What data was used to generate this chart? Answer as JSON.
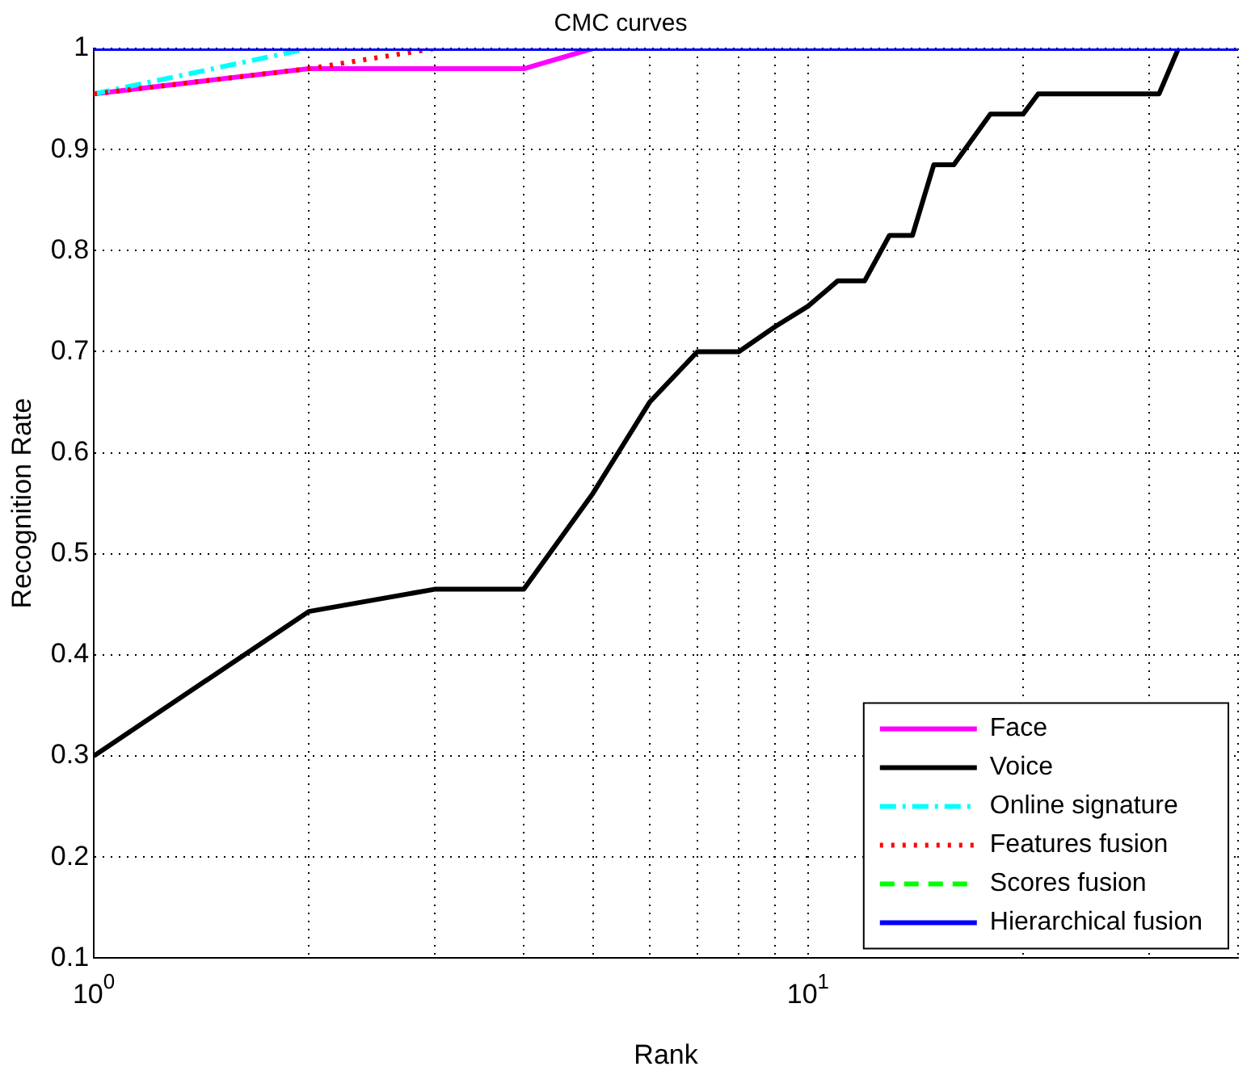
{
  "chart_data": {
    "type": "line",
    "title": "CMC curves",
    "xlabel": "Rank",
    "ylabel": "Recognition Rate",
    "log": "x",
    "xlim": [
      1,
      40
    ],
    "xticks": [
      {
        "value": 1,
        "label": "10$^{0}$"
      },
      {
        "value": 2,
        "label": null
      },
      {
        "value": 3,
        "label": null
      },
      {
        "value": 4,
        "label": null
      },
      {
        "value": 5,
        "label": null
      },
      {
        "value": 6,
        "label": null
      },
      {
        "value": 7,
        "label": null
      },
      {
        "value": 8,
        "label": null
      },
      {
        "value": 9,
        "label": null
      },
      {
        "value": 10,
        "label": "10$^{1}$"
      },
      {
        "value": 20,
        "label": null
      },
      {
        "value": 30,
        "label": null
      },
      {
        "value": 40,
        "label": null
      }
    ],
    "ylim": [
      0.1,
      1
    ],
    "yticks": [
      0.1,
      0.2,
      0.3,
      0.4,
      0.5,
      0.6,
      0.7,
      0.8,
      0.9,
      1
    ],
    "grid": true,
    "legend": "bottom right",
    "marker": "none",
    "series": [
      {
        "name": "Face",
        "color": "#ff00ff",
        "line_style": "solid",
        "x": [
          1,
          2,
          3,
          4,
          5
        ],
        "values": [
          0.955,
          0.98,
          0.98,
          0.98,
          1
        ]
      },
      {
        "name": "Voice",
        "color": "#000000",
        "line_style": "solid",
        "x": [
          1,
          2,
          3,
          4,
          5,
          6,
          7,
          8,
          9,
          10,
          11,
          12,
          13,
          14,
          15,
          16,
          18,
          20,
          21,
          31,
          33,
          40
        ],
        "values": [
          0.3,
          0.443,
          0.465,
          0.465,
          0.56,
          0.65,
          0.7,
          0.7,
          0.725,
          0.745,
          0.77,
          0.77,
          0.815,
          0.815,
          0.885,
          0.885,
          0.935,
          0.935,
          0.955,
          0.955,
          1,
          1
        ]
      },
      {
        "name": "Online signature",
        "color": "#00ffff",
        "line_style": "dashdot",
        "x": [
          1,
          2
        ],
        "values": [
          0.955,
          1
        ]
      },
      {
        "name": "Features fusion",
        "color": "#ff0000",
        "line_style": "dotted",
        "x": [
          1,
          2,
          3
        ],
        "values": [
          0.955,
          0.98,
          1
        ]
      },
      {
        "name": "Scores fusion",
        "color": "#00ff00",
        "line_style": "dashed"
      },
      {
        "name": "Hierarchical fusion",
        "color": "#0000ff",
        "line_style": "solid",
        "x": [
          1,
          40
        ],
        "values": [
          1,
          1
        ]
      }
    ]
  }
}
